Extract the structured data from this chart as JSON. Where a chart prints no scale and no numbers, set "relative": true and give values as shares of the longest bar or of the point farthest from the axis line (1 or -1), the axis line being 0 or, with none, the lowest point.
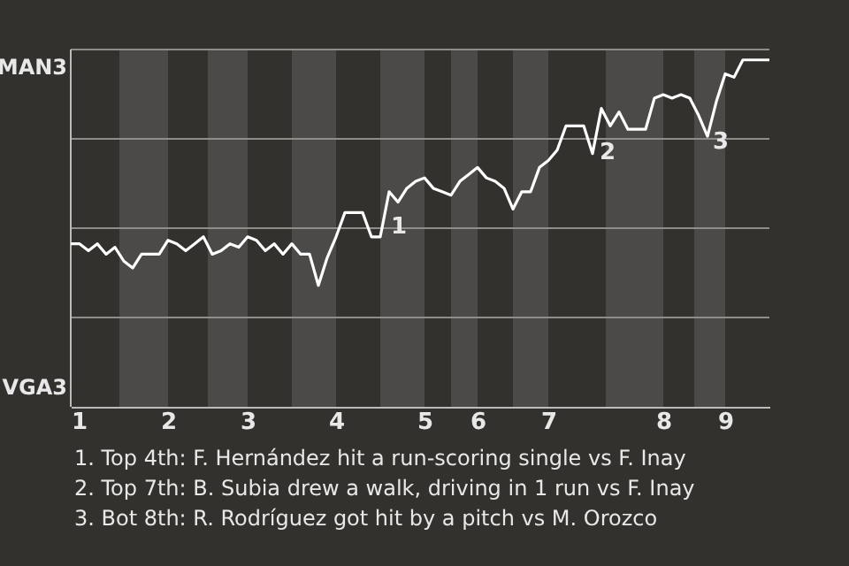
{
  "chart_data": {
    "type": "line",
    "relative": true,
    "categories": [
      "1",
      null,
      null,
      null,
      null,
      null,
      null,
      null,
      null,
      null,
      null,
      "2",
      null,
      null,
      null,
      null,
      null,
      null,
      null,
      null,
      "3",
      null,
      null,
      null,
      null,
      null,
      null,
      null,
      null,
      null,
      "4",
      null,
      null,
      null,
      null,
      null,
      null,
      null,
      null,
      null,
      "5",
      null,
      null,
      null,
      null,
      null,
      "6",
      null,
      null,
      null,
      null,
      null,
      null,
      null,
      "7",
      null,
      null,
      null,
      null,
      null,
      null,
      null,
      null,
      null,
      null,
      null,
      null,
      "8",
      null,
      null,
      null,
      null,
      null,
      null,
      "9",
      null,
      null,
      null,
      null,
      null
    ],
    "series": [
      {
        "color": "#ffffff",
        "values": [
          0.47,
          0.47,
          0.45,
          0.47,
          0.44,
          0.46,
          0.42,
          0.4,
          0.44,
          0.44,
          0.44,
          0.48,
          0.47,
          0.45,
          0.47,
          0.49,
          0.44,
          0.45,
          0.47,
          0.46,
          0.49,
          0.48,
          0.45,
          0.47,
          0.44,
          0.47,
          0.44,
          0.44,
          0.35,
          0.43,
          0.49,
          0.56,
          0.56,
          0.56,
          0.49,
          0.49,
          0.62,
          0.59,
          0.63,
          0.65,
          0.66,
          0.63,
          0.62,
          0.61,
          0.65,
          0.67,
          0.69,
          0.66,
          0.65,
          0.63,
          0.57,
          0.62,
          0.62,
          0.69,
          0.71,
          0.74,
          0.81,
          0.81,
          0.81,
          0.73,
          0.86,
          0.81,
          0.85,
          0.8,
          0.8,
          0.8,
          0.89,
          0.9,
          0.89,
          0.9,
          0.89,
          0.84,
          0.78,
          0.88,
          0.96,
          0.95,
          1,
          1,
          1,
          1
        ]
      }
    ],
    "grid": "y",
    "marker": "none",
    "line_style": "solid",
    "annotations": [
      "MAN3",
      "VGA3",
      "1",
      "2",
      "3",
      "1. Top 4th: F. Hernández hit a run-scoring single vs F. Inay",
      "2. Top 7th: B. Subia drew a walk, driving in 1 run vs F. Inay",
      "3. Bot 8th: R. Rodríguez got hit by a pitch vs M. Orozco"
    ]
  }
}
